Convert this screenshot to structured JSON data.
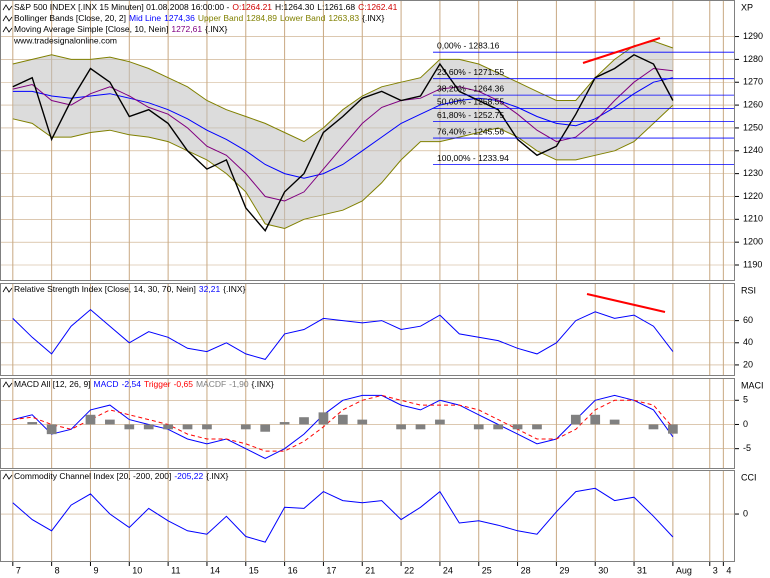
{
  "chart_data": [
    {
      "type": "line",
      "title": "S&P 500 INDEX [.INX 15 Minuten] 01.08.2008 16:00:00 -",
      "readouts": [
        {
          "value": 1264.21,
          "label": "O:1264.21"
        },
        {
          "value": 1264.3,
          "label": "H:1264.30"
        },
        {
          "value": 1261.68,
          "label": "L:1261.68"
        },
        {
          "value": 1262.41,
          "label": "C:1262.41"
        }
      ],
      "indicator": "Bollinger Bands [Close, 20, 2]",
      "suffix": "{.INX}",
      "watermark": "www.tradesignalonline.com",
      "axis_label": "XP",
      "color": "#000000",
      "x": [
        0,
        0.5,
        1,
        1.5,
        2,
        2.5,
        3,
        3.5,
        4,
        4.5,
        5,
        5.5,
        6,
        6.5,
        7,
        7.5,
        8,
        8.5,
        9,
        9.5,
        10,
        10.5,
        11,
        11.5,
        12,
        12.5,
        13,
        13.5,
        14,
        14.5,
        15,
        15.5,
        16,
        16.5,
        17
      ],
      "values": [
        1268,
        1272,
        1245,
        1262,
        1276,
        1270,
        1255,
        1258,
        1252,
        1240,
        1232,
        1236,
        1215,
        1205,
        1222,
        1230,
        1248,
        1255,
        1263,
        1266,
        1262,
        1264,
        1278,
        1266,
        1262,
        1258,
        1245,
        1238,
        1242,
        1256,
        1272,
        1276,
        1282,
        1278,
        1262
      ],
      "series": [
        {
          "name": "Mid Line",
          "color": "#0000ff",
          "last": {
            "value": 1274.36,
            "label": "1274,36"
          },
          "values": [
            1266,
            1266,
            1264,
            1263,
            1264,
            1265,
            1263,
            1261,
            1258,
            1254,
            1249,
            1245,
            1240,
            1234,
            1230,
            1228,
            1230,
            1234,
            1240,
            1246,
            1252,
            1256,
            1260,
            1262,
            1263,
            1262,
            1259,
            1255,
            1252,
            1251,
            1254,
            1259,
            1265,
            1270,
            1272
          ]
        },
        {
          "name": "Upper Band",
          "color": "#808000",
          "last": {
            "value": 1284.89,
            "label": "1284,89"
          },
          "values": [
            1278,
            1280,
            1282,
            1280,
            1280,
            1281,
            1279,
            1276,
            1272,
            1268,
            1262,
            1258,
            1255,
            1252,
            1248,
            1244,
            1250,
            1258,
            1264,
            1268,
            1270,
            1272,
            1280,
            1280,
            1278,
            1274,
            1270,
            1266,
            1262,
            1262,
            1272,
            1280,
            1286,
            1288,
            1285
          ]
        },
        {
          "name": "Lower Band",
          "color": "#808000",
          "last": {
            "value": 1263.83,
            "label": "1263,83"
          },
          "values": [
            1254,
            1252,
            1246,
            1246,
            1248,
            1249,
            1247,
            1246,
            1244,
            1240,
            1236,
            1230,
            1222,
            1208,
            1206,
            1210,
            1212,
            1214,
            1218,
            1226,
            1236,
            1244,
            1244,
            1246,
            1248,
            1250,
            1246,
            1240,
            1236,
            1236,
            1238,
            1240,
            1244,
            1252,
            1260
          ]
        },
        {
          "name": "Moving Average Simple [Close, 10, Nein]",
          "color": "#800080",
          "last": {
            "value": 1272.61,
            "label": "1272,61"
          },
          "values": [
            1267,
            1269,
            1262,
            1260,
            1265,
            1268,
            1264,
            1259,
            1256,
            1250,
            1242,
            1238,
            1230,
            1220,
            1218,
            1222,
            1232,
            1242,
            1252,
            1259,
            1262,
            1263,
            1267,
            1268,
            1266,
            1262,
            1256,
            1249,
            1244,
            1246,
            1253,
            1262,
            1270,
            1276,
            1275
          ]
        }
      ],
      "fib_levels": [
        {
          "value": 1283.16,
          "label": "0,00% - 1283.16"
        },
        {
          "value": 1271.55,
          "label": "23,60% - 1271.55"
        },
        {
          "value": 1264.36,
          "label": "38,20% - 1264.36"
        },
        {
          "value": 1258.55,
          "label": "50,00% - 1258.55"
        },
        {
          "value": 1252.75,
          "label": "61,80% - 1252.75"
        },
        {
          "value": 1245.56,
          "label": "76,40% - 1245.56"
        },
        {
          "value": 1233.94,
          "label": "100,00% - 1233.94"
        }
      ],
      "xlim": [
        -0.33,
        18.6
      ],
      "ylim": [
        1183,
        1306
      ],
      "yticks": [
        1190,
        1200,
        1210,
        1220,
        1230,
        1240,
        1250,
        1260,
        1270,
        1280,
        1290
      ],
      "grid": true
    },
    {
      "type": "line",
      "title": "Relative Strength Index [Close, 14, 30, 70, Nein]",
      "suffix": "{.INX}",
      "axis_label": "RSI",
      "color": "#0000ff",
      "last": {
        "value": 32.21,
        "label": "32,21"
      },
      "x": [
        0,
        0.5,
        1,
        1.5,
        2,
        2.5,
        3,
        3.5,
        4,
        4.5,
        5,
        5.5,
        6,
        6.5,
        7,
        7.5,
        8,
        8.5,
        9,
        9.5,
        10,
        10.5,
        11,
        11.5,
        12,
        12.5,
        13,
        13.5,
        14,
        14.5,
        15,
        15.5,
        16,
        16.5,
        17
      ],
      "values": [
        62,
        45,
        30,
        55,
        70,
        55,
        40,
        50,
        45,
        35,
        32,
        40,
        30,
        25,
        48,
        52,
        62,
        60,
        58,
        60,
        52,
        55,
        65,
        48,
        45,
        42,
        35,
        30,
        40,
        60,
        68,
        62,
        65,
        55,
        32
      ],
      "xlim": [
        -0.33,
        18.6
      ],
      "ylim": [
        10,
        94
      ],
      "yticks": [
        20,
        40,
        60
      ],
      "grid": true
    },
    {
      "type": "line",
      "title": "MACD All [12, 26, 9]",
      "suffix": "{.INX}",
      "axis_label": "MACI",
      "x": [
        0,
        0.5,
        1,
        1.5,
        2,
        2.5,
        3,
        3.5,
        4,
        4.5,
        5,
        5.5,
        6,
        6.5,
        7,
        7.5,
        8,
        8.5,
        9,
        9.5,
        10,
        10.5,
        11,
        11.5,
        12,
        12.5,
        13,
        13.5,
        14,
        14.5,
        15,
        15.5,
        16,
        16.5,
        17
      ],
      "series": [
        {
          "name": "MACD",
          "color": "#0000ff",
          "last": {
            "value": -2.54,
            "label": "-2,54"
          },
          "values": [
            1,
            2,
            -2,
            -1,
            3,
            4,
            1,
            0,
            -1,
            -3,
            -4,
            -3,
            -5,
            -7,
            -5,
            -2,
            2,
            5,
            6,
            6,
            4,
            3,
            5,
            4,
            2,
            0,
            -2,
            -4,
            -3,
            1,
            5,
            6,
            5,
            3,
            -2.54
          ]
        },
        {
          "name": "Trigger",
          "color": "#ff0000",
          "dash": true,
          "last": {
            "value": -0.65,
            "label": "-0,65"
          },
          "values": [
            1,
            1.5,
            0,
            -1,
            1,
            3,
            2,
            1,
            0,
            -2,
            -3,
            -3,
            -4,
            -5.5,
            -5.5,
            -3.5,
            -0.5,
            3,
            5,
            6,
            5,
            4,
            4,
            4,
            3,
            1,
            -1,
            -3,
            -3,
            -1,
            3,
            5,
            5,
            4,
            -0.65
          ]
        },
        {
          "name": "MACDF",
          "color": "#808080",
          "type": "bar",
          "last": {
            "value": -1.9,
            "label": "-1,90"
          },
          "values": [
            0,
            0.5,
            -2,
            0,
            2,
            1,
            -1,
            -1,
            -1,
            -1,
            -1,
            0,
            -1,
            -1.5,
            0.5,
            1.5,
            2.5,
            2,
            1,
            0,
            -1,
            -1,
            1,
            0,
            -1,
            -1,
            -1,
            -1,
            0,
            2,
            2,
            1,
            0,
            -1,
            -1.9
          ]
        }
      ],
      "xlim": [
        -0.33,
        18.6
      ],
      "ylim": [
        -9.2,
        9.6
      ],
      "yticks": [
        -5,
        0,
        5
      ],
      "grid": true
    },
    {
      "type": "line",
      "title": "Commodity Channel Index [20, -200, 200]",
      "suffix": "{.INX}",
      "axis_label": "CCI",
      "color": "#0000ff",
      "last": {
        "value": -205.22,
        "label": "-205,22"
      },
      "x": [
        0,
        0.5,
        1,
        1.5,
        2,
        2.5,
        3,
        3.5,
        4,
        4.5,
        5,
        5.5,
        6,
        6.5,
        7,
        7.5,
        8,
        8.5,
        9,
        9.5,
        10,
        10.5,
        11,
        11.5,
        12,
        12.5,
        13,
        13.5,
        14,
        14.5,
        15,
        15.5,
        16,
        16.5,
        17
      ],
      "values": [
        100,
        -50,
        -150,
        80,
        180,
        0,
        -120,
        50,
        -60,
        -150,
        -180,
        -20,
        -200,
        -250,
        60,
        50,
        200,
        120,
        100,
        120,
        -50,
        60,
        200,
        -80,
        -60,
        -100,
        -150,
        -180,
        20,
        200,
        230,
        120,
        150,
        -20,
        -205.22
      ],
      "xlim": [
        -0.33,
        18.6
      ],
      "ylim": [
        -428,
        393
      ],
      "yticks": [
        0
      ],
      "xticks": [
        {
          "value": 0,
          "label": "7"
        },
        {
          "value": 1,
          "label": "8"
        },
        {
          "value": 2,
          "label": "9"
        },
        {
          "value": 3,
          "label": "10"
        },
        {
          "value": 4,
          "label": "11"
        },
        {
          "value": 5,
          "label": "14"
        },
        {
          "value": 6,
          "label": "15"
        },
        {
          "value": 7,
          "label": "16"
        },
        {
          "value": 8,
          "label": "17"
        },
        {
          "value": 9,
          "label": "21"
        },
        {
          "value": 10,
          "label": "22"
        },
        {
          "value": 11,
          "label": "24"
        },
        {
          "value": 12,
          "label": "25"
        },
        {
          "value": 13,
          "label": "28"
        },
        {
          "value": 14,
          "label": "29"
        },
        {
          "value": 15,
          "label": "30"
        },
        {
          "value": 16,
          "label": "31"
        },
        {
          "value": 17,
          "label": "Aug"
        },
        {
          "value": 17.95,
          "label": "3"
        },
        {
          "value": 18.3,
          "label": "4"
        }
      ],
      "grid": true
    }
  ]
}
